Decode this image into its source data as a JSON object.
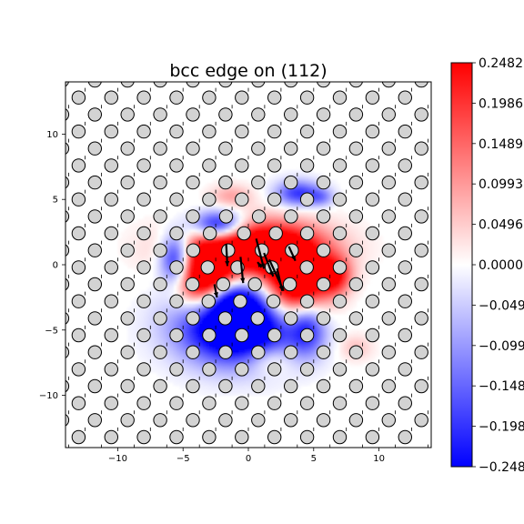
{
  "chart_data": {
    "type": "heatmap",
    "title": "bcc edge on (112)",
    "xlabel": "",
    "ylabel": "",
    "xlim": [
      -14,
      14
    ],
    "ylim": [
      -14,
      14
    ],
    "x_ticks": [
      -10,
      -5,
      0,
      5,
      10
    ],
    "y_ticks": [
      10,
      5,
      0,
      -5,
      -10
    ],
    "x_tick_labels": [
      "−10",
      "−5",
      "0",
      "5",
      "10"
    ],
    "y_tick_labels": [
      "10",
      "5",
      "0",
      "−5",
      "−10"
    ],
    "grid": false,
    "colormap": "bwr",
    "clim": [
      -0.2482,
      0.2482
    ],
    "colorbar": {
      "location": "right",
      "ticks": [
        0.2482,
        0.1986,
        0.1489,
        0.0993,
        0.0496,
        0.0,
        -0.0496,
        -0.0993,
        -0.1489,
        -0.1986,
        -0.2482
      ],
      "tick_labels": [
        "0.2482",
        "0.1986",
        "0.1489",
        "0.0993",
        "0.0496",
        "0.0000",
        "−0.0496",
        "−0.0993",
        "−0.1489",
        "−0.1986",
        "−0.2482"
      ]
    },
    "atoms": {
      "description_color": "#d3d3d3",
      "edge_color": "#000000",
      "lattice_dx": 2.5,
      "row_dy": 1.3,
      "row_offset": 1.25
    },
    "field_blobs": [
      {
        "x": -2.3,
        "y": 3.0,
        "sx": 1.4,
        "sy": 0.8,
        "a": -1.3
      },
      {
        "x": -5.5,
        "y": 0.5,
        "sx": 0.9,
        "sy": 1.4,
        "a": -1.3
      },
      {
        "x": 3.8,
        "y": 5.5,
        "sx": 1.2,
        "sy": 0.7,
        "a": -0.8
      },
      {
        "x": 5.6,
        "y": 5.2,
        "sx": 0.7,
        "sy": 0.5,
        "a": -0.4
      },
      {
        "x": 0.2,
        "y": 1.3,
        "sx": 3.6,
        "sy": 1.4,
        "a": 1.7
      },
      {
        "x": -3.4,
        "y": -1.2,
        "sx": 1.5,
        "sy": 1.6,
        "a": 1.6
      },
      {
        "x": 3.6,
        "y": -1.6,
        "sx": 1.7,
        "sy": 1.9,
        "a": 1.6
      },
      {
        "x": 6.6,
        "y": -0.8,
        "sx": 0.9,
        "sy": 1.0,
        "a": 0.9
      },
      {
        "x": -1.3,
        "y": 5.3,
        "sx": 1.1,
        "sy": 0.6,
        "a": 0.35
      },
      {
        "x": -0.8,
        "y": -4.5,
        "sx": 3.0,
        "sy": 2.0,
        "a": -1.8
      },
      {
        "x": -1.5,
        "y": -2.6,
        "sx": 1.4,
        "sy": 0.9,
        "a": -0.6
      },
      {
        "x": 4.5,
        "y": -4.7,
        "sx": 1.0,
        "sy": 1.5,
        "a": -0.8
      },
      {
        "x": 1.6,
        "y": -7.2,
        "sx": 1.2,
        "sy": 0.8,
        "a": 0.35
      },
      {
        "x": 8.2,
        "y": -6.3,
        "sx": 0.9,
        "sy": 0.7,
        "a": 0.25
      }
    ],
    "arrows": [
      {
        "x": -2.6,
        "y": -1.5,
        "dx": 0.2,
        "dy": -1.0
      },
      {
        "x": -1.7,
        "y": 1.6,
        "dx": 0.1,
        "dy": -1.7
      },
      {
        "x": -0.6,
        "y": 0.6,
        "dx": 0.2,
        "dy": -2.0
      },
      {
        "x": 0.6,
        "y": 2.0,
        "dx": 0.6,
        "dy": -2.3
      },
      {
        "x": 1.2,
        "y": 0.9,
        "dx": 0.7,
        "dy": -1.8
      },
      {
        "x": 1.6,
        "y": 0.4,
        "dx": 1.1,
        "dy": -2.4
      },
      {
        "x": 2.2,
        "y": -0.3,
        "dx": 0.4,
        "dy": -1.7
      },
      {
        "x": 3.1,
        "y": 1.4,
        "dx": 0.5,
        "dy": -1.1
      },
      {
        "x": 1.0,
        "y": -0.2,
        "dx": -0.3,
        "dy": 0.4
      }
    ]
  }
}
